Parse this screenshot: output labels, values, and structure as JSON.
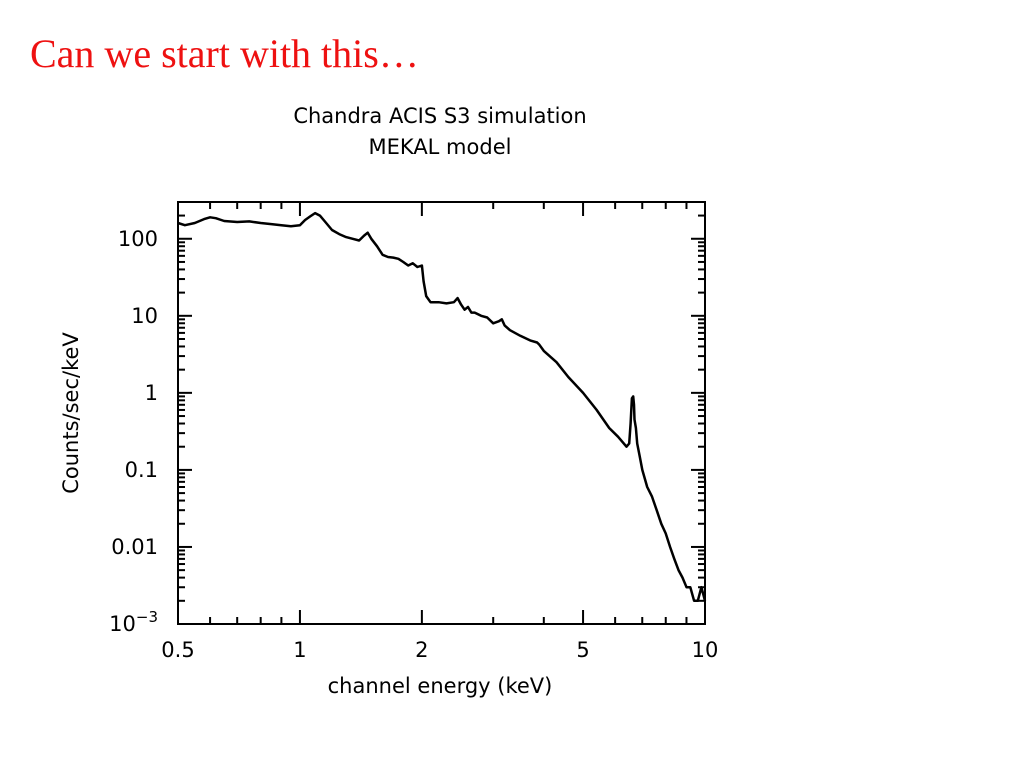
{
  "slide": {
    "title": "Can we start with this…",
    "title_color": "#ee1111"
  },
  "chart_data": {
    "type": "line",
    "title": "Chandra ACIS S3 simulation",
    "subtitle": "MEKAL model",
    "xlabel": "channel energy (keV)",
    "ylabel": "Counts/sec/keV",
    "x_scale": "log",
    "y_scale": "log",
    "xlim": [
      0.5,
      10
    ],
    "ylim": [
      0.001,
      300
    ],
    "grid": false,
    "x_ticks": [
      {
        "value": 0.5,
        "label": "0.5"
      },
      {
        "value": 1,
        "label": "1"
      },
      {
        "value": 2,
        "label": "2"
      },
      {
        "value": 5,
        "label": "5"
      },
      {
        "value": 10,
        "label": "10"
      }
    ],
    "y_ticks": [
      {
        "value": 100,
        "label": "100"
      },
      {
        "value": 10,
        "label": "10"
      },
      {
        "value": 1,
        "label": "1"
      },
      {
        "value": 0.1,
        "label": "0.1"
      },
      {
        "value": 0.01,
        "label": "0.01"
      },
      {
        "value": 0.001,
        "label": "10",
        "exponent": "−3"
      }
    ],
    "line_color": "#000000",
    "series": [
      {
        "x": [
          0.5,
          0.52,
          0.55,
          0.58,
          0.6,
          0.62,
          0.65,
          0.7,
          0.75,
          0.8,
          0.85,
          0.9,
          0.95,
          1.0,
          1.03,
          1.06,
          1.09,
          1.12,
          1.15,
          1.2,
          1.25,
          1.3,
          1.35,
          1.4,
          1.44,
          1.47,
          1.5,
          1.55,
          1.6,
          1.65,
          1.7,
          1.75,
          1.8,
          1.85,
          1.9,
          1.95,
          2.0,
          2.02,
          2.05,
          2.1,
          2.2,
          2.3,
          2.4,
          2.45,
          2.5,
          2.55,
          2.6,
          2.65,
          2.7,
          2.8,
          2.9,
          3.0,
          3.1,
          3.15,
          3.2,
          3.3,
          3.5,
          3.7,
          3.85,
          3.9,
          4.0,
          4.3,
          4.6,
          5.0,
          5.4,
          5.8,
          6.1,
          6.4,
          6.5,
          6.55,
          6.6,
          6.65,
          6.68,
          6.7,
          6.75,
          6.8,
          6.9,
          7.0,
          7.2,
          7.4,
          7.6,
          7.8,
          8.0,
          8.2,
          8.4,
          8.6,
          8.8,
          9.0,
          9.2,
          9.4,
          9.6,
          9.8,
          10.0
        ],
        "y": [
          160,
          150,
          160,
          180,
          190,
          185,
          170,
          165,
          168,
          160,
          155,
          150,
          145,
          150,
          175,
          195,
          215,
          200,
          170,
          130,
          115,
          105,
          100,
          95,
          110,
          120,
          100,
          80,
          62,
          58,
          57,
          55,
          50,
          45,
          48,
          43,
          45,
          28,
          18,
          15,
          15,
          14.5,
          15,
          17,
          14,
          12,
          13,
          11,
          11,
          10,
          9.5,
          8,
          8.5,
          9,
          7.5,
          6.5,
          5.5,
          4.8,
          4.5,
          4.2,
          3.5,
          2.5,
          1.6,
          1.0,
          0.6,
          0.35,
          0.27,
          0.2,
          0.22,
          0.4,
          0.85,
          0.9,
          0.7,
          0.45,
          0.35,
          0.22,
          0.15,
          0.1,
          0.06,
          0.045,
          0.03,
          0.02,
          0.015,
          0.01,
          0.007,
          0.005,
          0.004,
          0.003,
          0.003,
          0.002,
          0.002,
          0.003,
          0.002
        ]
      }
    ]
  }
}
